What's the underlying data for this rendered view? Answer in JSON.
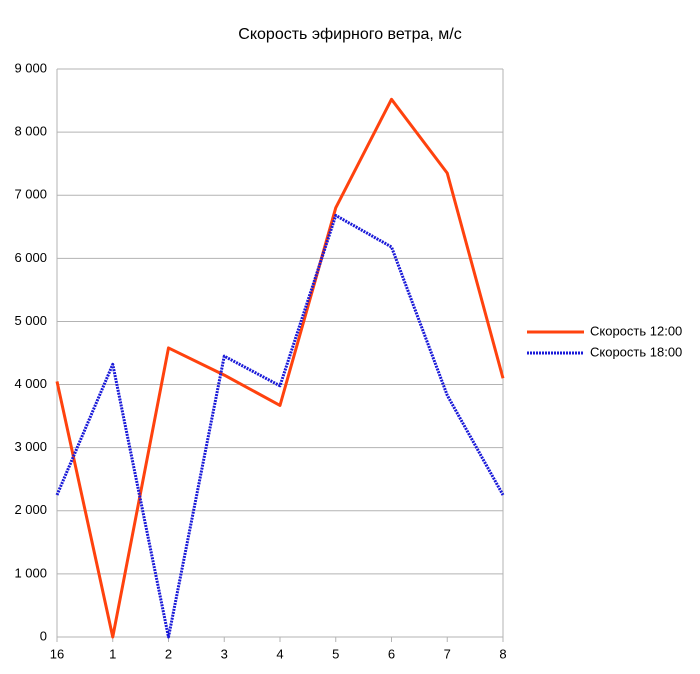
{
  "chart_data": {
    "type": "line",
    "title": "Скорость эфирного ветра, м/с",
    "categories": [
      "16",
      "1",
      "2",
      "3",
      "4",
      "5",
      "6",
      "7",
      "8"
    ],
    "series": [
      {
        "name": "Скорость 12:00",
        "color": "#ff420e",
        "style": "solid",
        "values": [
          4050,
          0,
          4580,
          4150,
          3670,
          6800,
          8520,
          7350,
          4100
        ]
      },
      {
        "name": "Скорость 18:00",
        "color": "#1a1ad8",
        "style": "dotted",
        "values": [
          2250,
          4320,
          0,
          4450,
          3980,
          6680,
          6180,
          3830,
          2250
        ]
      }
    ],
    "ylim": [
      0,
      9000
    ],
    "yticks": [
      0,
      {
        "value": 1000,
        "label": "1 000"
      },
      {
        "value": 2000,
        "label": "2 000"
      },
      {
        "value": 3000,
        "label": "3 000"
      },
      {
        "value": 4000,
        "label": "4 000"
      },
      {
        "value": 5000,
        "label": "5 000"
      },
      {
        "value": 6000,
        "label": "6 000"
      },
      {
        "value": 7000,
        "label": "7 000"
      },
      {
        "value": 8000,
        "label": "8 000"
      },
      {
        "value": 9000,
        "label": "9 000"
      }
    ],
    "grid": true,
    "legend": "right"
  }
}
